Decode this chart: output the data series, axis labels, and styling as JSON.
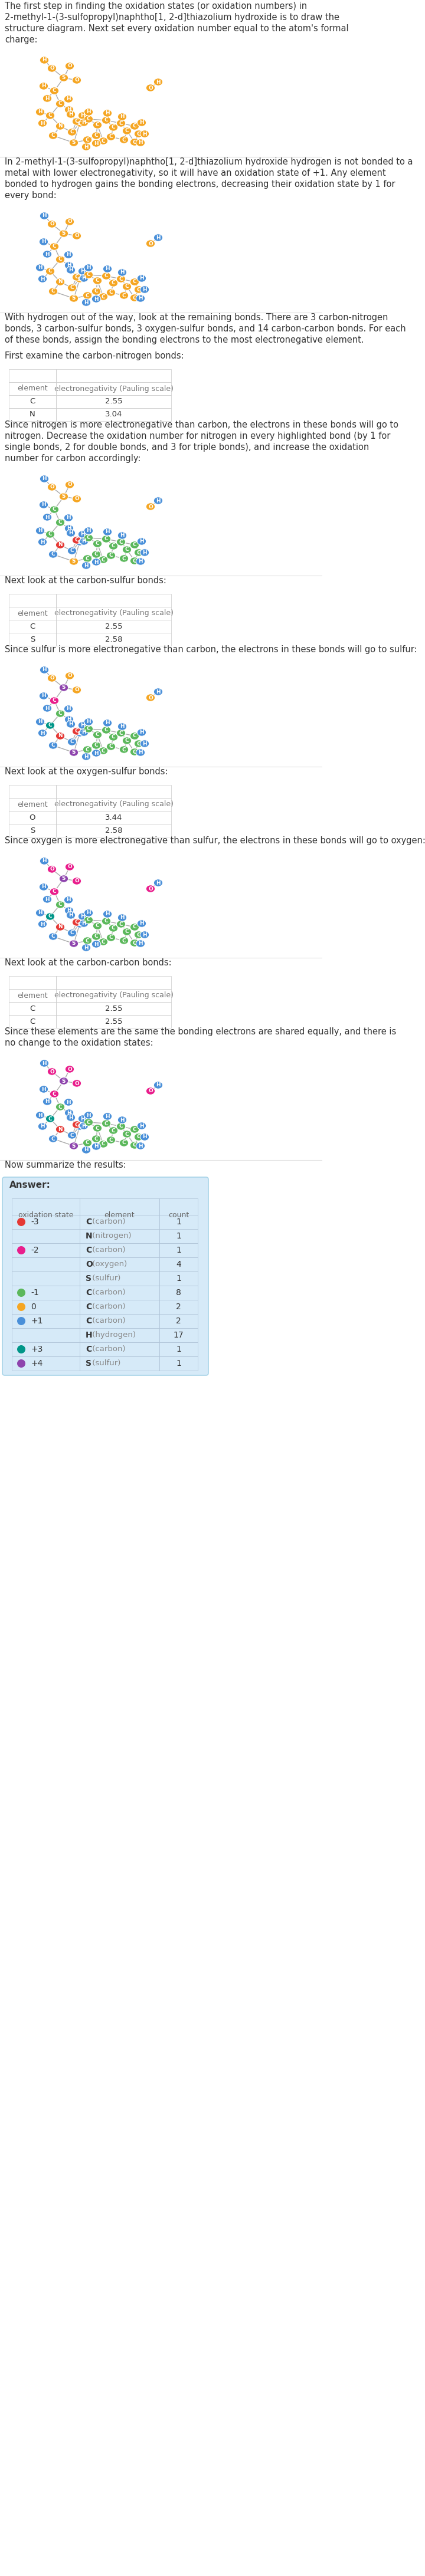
{
  "bg_color": "#ffffff",
  "orange": "#f5a623",
  "blue_h": "#4a90d9",
  "green_c": "#5cb85c",
  "red_c": "#e53935",
  "pink_c": "#e91e8c",
  "teal_c": "#009688",
  "purple_s": "#8e44ad",
  "bond_color": "#aaaaaa",
  "sep_color": "#dddddd",
  "text_color": "#333333",
  "gray_text": "#888888",
  "table_border": "#cccccc",
  "ans_border": "#b0c4d8",
  "ans_bg": "#d6eaf8",
  "ans_edge": "#a8d4e8",
  "title_lines": [
    "The first step in finding the oxidation states (or oxidation numbers) in",
    "2-methyl-1-(3-sulfopropyl)naphtho[1, 2-d]thiazolium hydroxide is to draw the",
    "structure diagram. Next set every oxidation number equal to the atom's formal",
    "charge:"
  ],
  "h_lines": [
    "In 2-methyl-1-(3-sulfopropyl)naphtho[1, 2-d]thiazolium hydroxide hydrogen is not bonded to a",
    "metal with lower electronegativity, so it will have an oxidation state of +1. Any element",
    "bonded to hydrogen gains the bonding electrons, decreasing their oxidation state by 1 for",
    "every bond:"
  ],
  "rb_lines": [
    "With hydrogen out of the way, look at the remaining bonds. There are 3 carbon-nitrogen",
    "bonds, 3 carbon-sulfur bonds, 3 oxygen-sulfur bonds, and 14 carbon-carbon bonds. For each",
    "of these bonds, assign the bonding electrons to the most electronegative element."
  ],
  "cn_intro": "First examine the carbon-nitrogen bonds:",
  "cn_rows": [
    [
      "C",
      "2.55"
    ],
    [
      "N",
      "3.04"
    ]
  ],
  "cn_text_lines": [
    "Since nitrogen is more electronegative than carbon, the electrons in these bonds will go to",
    "nitrogen. Decrease the oxidation number for nitrogen in every highlighted bond (by 1 for",
    "single bonds, 2 for double bonds, and 3 for triple bonds), and increase the oxidation",
    "number for carbon accordingly:"
  ],
  "cs_intro": "Next look at the carbon-sulfur bonds:",
  "cs_rows": [
    [
      "C",
      "2.55"
    ],
    [
      "S",
      "2.58"
    ]
  ],
  "cs_text": "Since sulfur is more electronegative than carbon, the electrons in these bonds will go to sulfur:",
  "os_intro": "Next look at the oxygen-sulfur bonds:",
  "os_rows": [
    [
      "O",
      "3.44"
    ],
    [
      "S",
      "2.58"
    ]
  ],
  "os_text": "Since oxygen is more electronegative than sulfur, the electrons in these bonds will go to oxygen:",
  "cc_intro": "Next look at the carbon-carbon bonds:",
  "cc_rows": [
    [
      "C",
      "2.55"
    ],
    [
      "C",
      "2.55"
    ]
  ],
  "cc_text_lines": [
    "Since these elements are the same the bonding electrons are shared equally, and there is",
    "no change to the oxidation states:"
  ],
  "summary_intro": "Now summarize the results:",
  "answer_label": "Answer:",
  "answer_headers": [
    "oxidation state",
    "element",
    "count"
  ],
  "answer_rows": [
    [
      "-3",
      "red",
      "C",
      "carbon",
      1,
      true
    ],
    [
      "-3",
      null,
      "N",
      "nitrogen",
      1,
      false
    ],
    [
      "-2",
      "hotpink",
      "C",
      "carbon",
      1,
      true
    ],
    [
      "-2",
      null,
      "O",
      "oxygen",
      4,
      false
    ],
    [
      "-2",
      null,
      "S",
      "sulfur",
      1,
      false
    ],
    [
      "-1",
      "green",
      "C",
      "carbon",
      8,
      true
    ],
    [
      "0",
      "orange",
      "C",
      "carbon",
      2,
      true
    ],
    [
      "+1",
      "blue",
      "C",
      "carbon",
      2,
      true
    ],
    [
      "+1",
      null,
      "H",
      "hydrogen",
      17,
      false
    ],
    [
      "+3",
      "teal",
      "C",
      "carbon",
      1,
      true
    ],
    [
      "+4",
      "purple",
      "S",
      "sulfur",
      1,
      true
    ]
  ],
  "dot_colors": {
    "red": "#e53935",
    "hotpink": "#e91e8c",
    "green": "#5cb85c",
    "orange": "#f5a623",
    "blue": "#4a90d9",
    "teal": "#009688",
    "purple": "#8e44ad"
  }
}
